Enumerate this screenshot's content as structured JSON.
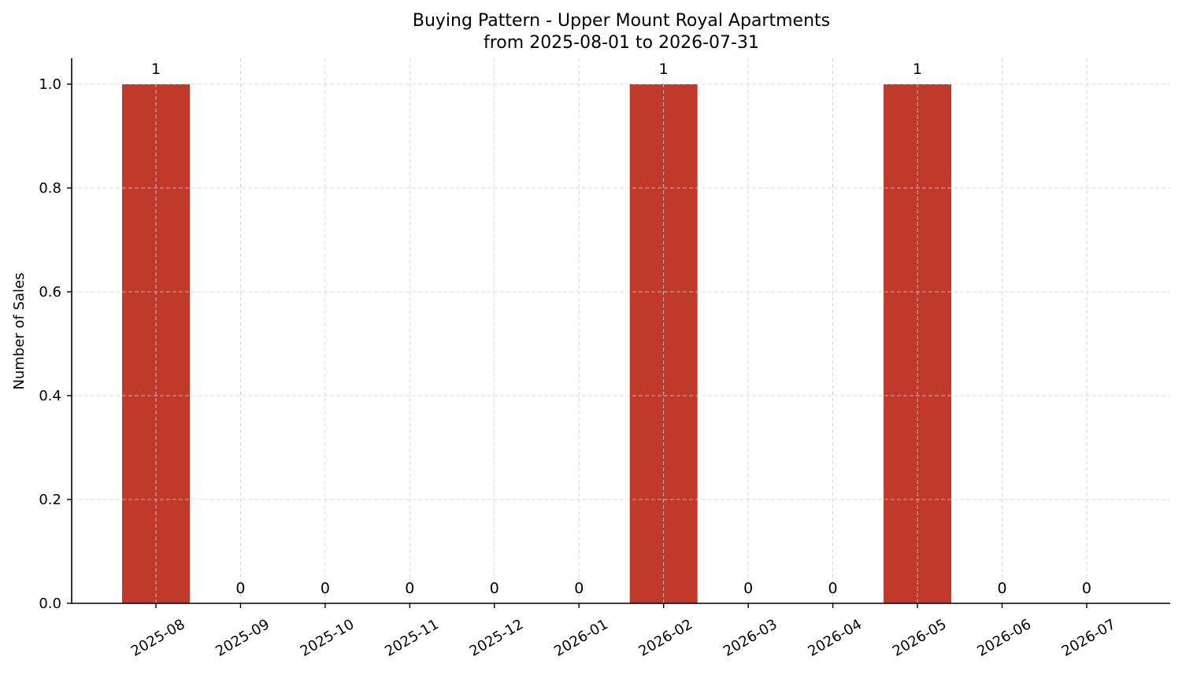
{
  "chart_data": {
    "type": "bar",
    "title": "Buying Pattern - Upper Mount Royal Apartments",
    "subtitle": "from 2025-08-01 to 2026-07-31",
    "xlabel": "",
    "ylabel": "Number of Sales",
    "categories": [
      "2025-08",
      "2025-09",
      "2025-10",
      "2025-11",
      "2025-12",
      "2026-01",
      "2026-02",
      "2026-03",
      "2026-04",
      "2026-05",
      "2026-06",
      "2026-07"
    ],
    "values": [
      1,
      0,
      0,
      0,
      0,
      0,
      1,
      0,
      0,
      1,
      0,
      0
    ],
    "data_labels": [
      "1",
      "0",
      "0",
      "0",
      "0",
      "0",
      "1",
      "0",
      "0",
      "1",
      "0",
      "0"
    ],
    "ylim": [
      0,
      1.05
    ],
    "yticks": [
      0.0,
      0.2,
      0.4,
      0.6,
      0.8,
      1.0
    ],
    "ytick_labels": [
      "0.0",
      "0.2",
      "0.4",
      "0.6",
      "0.8",
      "1.0"
    ],
    "grid": true,
    "legend": "none",
    "colors": {
      "bar": "#c0392b",
      "grid": "#d0d0d0",
      "axis": "#000000"
    }
  }
}
